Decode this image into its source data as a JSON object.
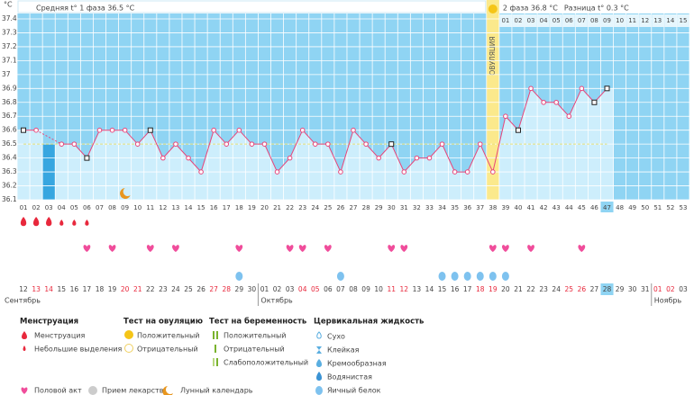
{
  "chart_data": {
    "type": "line",
    "unit": "°C",
    "phase1": "Средняя t° 1 фаза 36.5 °C",
    "phase2": "2 фаза 36.8 °C",
    "difference": "Разница t° 0.3 °C",
    "ovulation_label": "ОВУЛЯЦИЯ",
    "ovulation_day": "38",
    "today": "47",
    "ylim": [
      36.1,
      37.4
    ],
    "yticks": [
      36.1,
      36.2,
      36.3,
      36.4,
      36.5,
      36.6,
      36.7,
      36.8,
      36.9,
      37,
      37.1,
      37.2,
      37.3,
      37.4
    ],
    "grid": true,
    "coverline": 36.5,
    "categories": [
      "01",
      "02",
      "03",
      "04",
      "05",
      "06",
      "07",
      "08",
      "09",
      "10",
      "11",
      "12",
      "13",
      "14",
      "15",
      "16",
      "17",
      "18",
      "19",
      "20",
      "21",
      "22",
      "23",
      "24",
      "25",
      "26",
      "27",
      "28",
      "29",
      "30",
      "31",
      "32",
      "33",
      "34",
      "35",
      "36",
      "37",
      "38",
      "39",
      "40",
      "41",
      "42",
      "43",
      "44",
      "45",
      "46",
      "47",
      "48",
      "49",
      "50",
      "51",
      "52",
      "53"
    ],
    "phase2_days": [
      "01",
      "02",
      "03",
      "04",
      "05",
      "06",
      "07",
      "08",
      "09",
      "10",
      "11",
      "12",
      "13",
      "14",
      "15"
    ],
    "series": [
      {
        "name": "Температура",
        "color": "#e8457a",
        "values": [
          36.6,
          36.6,
          null,
          36.5,
          36.5,
          36.4,
          36.6,
          36.6,
          36.6,
          36.5,
          36.6,
          36.4,
          36.5,
          36.4,
          36.3,
          36.6,
          36.5,
          36.6,
          36.5,
          36.5,
          36.3,
          36.4,
          36.6,
          36.5,
          36.5,
          36.3,
          36.6,
          36.5,
          36.4,
          36.5,
          36.3,
          36.4,
          36.4,
          36.5,
          36.3,
          36.3,
          36.5,
          36.3,
          36.7,
          36.6,
          36.9,
          36.8,
          36.8,
          36.7,
          36.9,
          36.8,
          36.9,
          null,
          null,
          null,
          null,
          null,
          null
        ]
      }
    ],
    "marker_outline_days": [
      "01",
      "06",
      "11",
      "30",
      "40",
      "46",
      "47"
    ],
    "menstruation_heavy": [
      "01",
      "02",
      "03"
    ],
    "menstruation_light": [
      "04",
      "05",
      "06"
    ],
    "intercourse_days": [
      "06",
      "08",
      "11",
      "13",
      "18",
      "22",
      "23",
      "25",
      "30",
      "31",
      "38",
      "39",
      "41",
      "45"
    ],
    "egg_white_days": [
      "18",
      "26",
      "34",
      "35",
      "36",
      "37",
      "38",
      "39"
    ],
    "lunar_days": [
      "09"
    ],
    "calendar": {
      "dates": [
        "12",
        "13",
        "14",
        "15",
        "16",
        "17",
        "18",
        "19",
        "20",
        "21",
        "22",
        "23",
        "24",
        "25",
        "26",
        "27",
        "28",
        "29",
        "30",
        "01",
        "02",
        "03",
        "04",
        "05",
        "06",
        "07",
        "08",
        "09",
        "10",
        "11",
        "12",
        "13",
        "14",
        "15",
        "16",
        "17",
        "18",
        "19",
        "20",
        "21",
        "22",
        "23",
        "24",
        "25",
        "26",
        "27",
        "28",
        "29",
        "30",
        "31",
        "01",
        "02",
        "03"
      ],
      "holiday": [
        false,
        true,
        true,
        false,
        false,
        false,
        false,
        false,
        true,
        true,
        false,
        false,
        false,
        false,
        false,
        true,
        true,
        false,
        false,
        false,
        false,
        false,
        true,
        true,
        false,
        false,
        false,
        false,
        false,
        true,
        true,
        false,
        false,
        false,
        false,
        false,
        true,
        true,
        false,
        false,
        false,
        false,
        false,
        true,
        true,
        false,
        false,
        false,
        false,
        false,
        true,
        true,
        false
      ],
      "months": [
        "Сентябрь",
        "Октябрь",
        "Ноябрь"
      ]
    }
  },
  "legend": {
    "menstruation": {
      "title": "Менструация",
      "items": [
        "Менструация",
        "Небольшие выделения"
      ]
    },
    "ovulation_test": {
      "title": "Тест на овуляцию",
      "items": [
        "Положительный",
        "Отрицательный"
      ]
    },
    "pregnancy_test": {
      "title": "Тест на беременность",
      "items": [
        "Положительный",
        "Отрицательный",
        "Слабоположительный"
      ]
    },
    "cervical_fluid": {
      "title": "Цервикальная жидкость",
      "items": [
        "Сухо",
        "Клейкая",
        "Кремообразная",
        "Водянистая",
        "Яичный белок"
      ]
    },
    "other": [
      "Половой акт",
      "Прием лекарств",
      "Лунный календарь"
    ]
  }
}
